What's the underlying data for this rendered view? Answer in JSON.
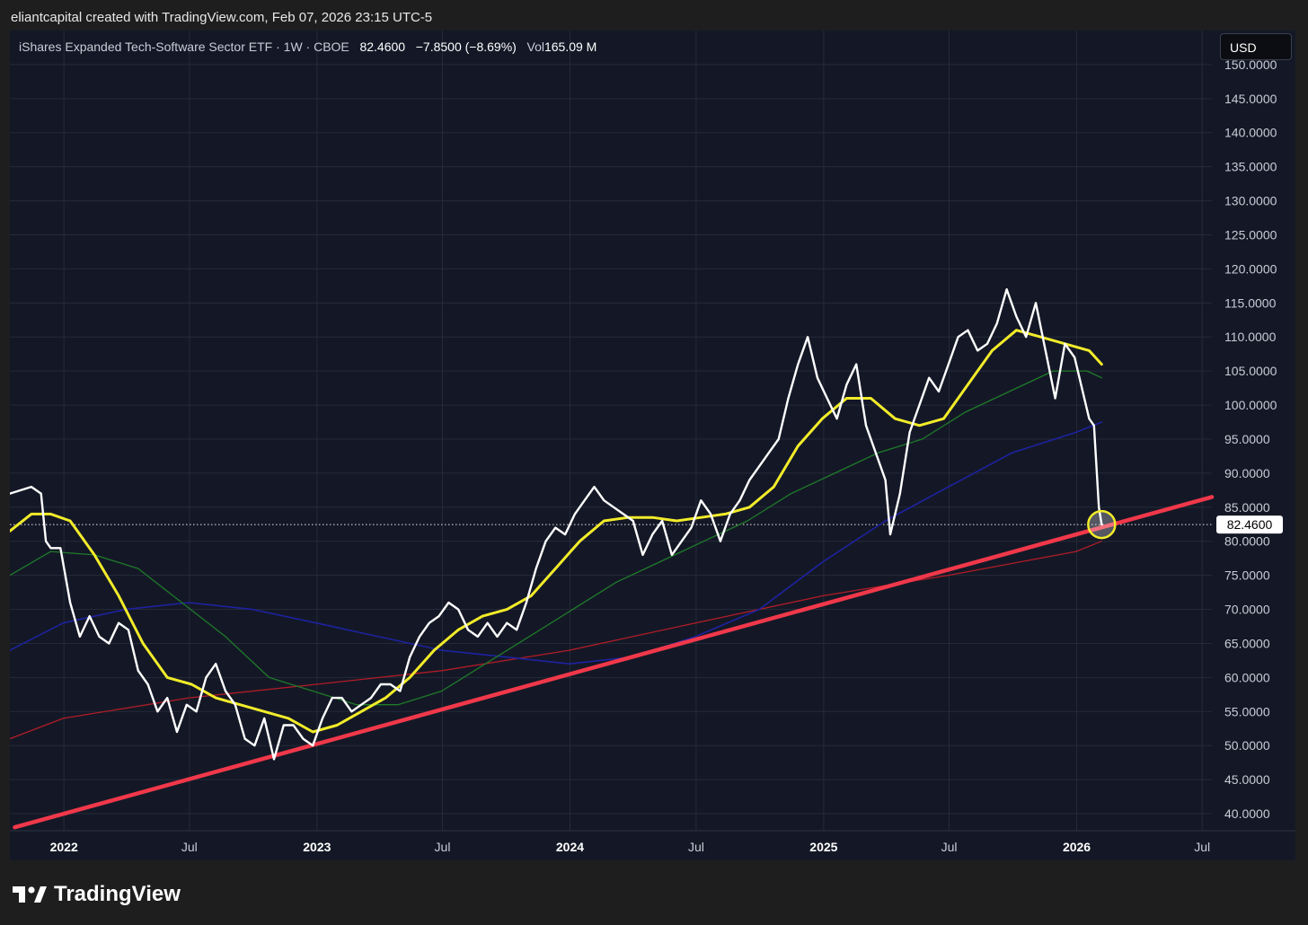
{
  "header": {
    "attribution": "eliantcapital created with TradingView.com, Feb 07, 2026 23:15 UTC-5"
  },
  "legend": {
    "symbol": "iShares Expanded Tech-Software Sector ETF · 1W · CBOE",
    "price": "82.4600",
    "change": "−7.8500 (−8.69%)",
    "vol_label": "Vol",
    "vol_value": "165.09 M"
  },
  "currency": "USD",
  "footer": {
    "brand": "TradingView",
    "logo_icon": "tradingview-logo-icon"
  },
  "colors": {
    "background": "#141826",
    "price_line": "#ffffff",
    "ma_yellow": "#f2ec2a",
    "ma_green": "#1f7a2a",
    "ma_blue": "#1e22a0",
    "ma_red": "#b01c28",
    "trendline": "#f0384a",
    "grid": "#252a39"
  },
  "chart_data": {
    "type": "line",
    "ylim": [
      37.5,
      155
    ],
    "xlim": [
      "2021-10-15",
      "2026-07-15"
    ],
    "y_ticks": [
      "40.0000",
      "45.0000",
      "50.0000",
      "55.0000",
      "60.0000",
      "65.0000",
      "70.0000",
      "75.0000",
      "80.0000",
      "85.0000",
      "90.0000",
      "95.0000",
      "100.0000",
      "105.0000",
      "110.0000",
      "115.0000",
      "120.0000",
      "125.0000",
      "130.0000",
      "135.0000",
      "140.0000",
      "145.0000",
      "150.0000"
    ],
    "x_ticks": [
      {
        "label": "2022",
        "date": "2022-01-01",
        "bold": true
      },
      {
        "label": "Jul",
        "date": "2022-07-01",
        "bold": false
      },
      {
        "label": "2023",
        "date": "2023-01-01",
        "bold": true
      },
      {
        "label": "Jul",
        "date": "2023-07-01",
        "bold": false
      },
      {
        "label": "2024",
        "date": "2024-01-01",
        "bold": true
      },
      {
        "label": "Jul",
        "date": "2024-07-01",
        "bold": false
      },
      {
        "label": "2025",
        "date": "2025-01-01",
        "bold": true
      },
      {
        "label": "Jul",
        "date": "2025-07-01",
        "bold": false
      },
      {
        "label": "2026",
        "date": "2026-01-01",
        "bold": true
      },
      {
        "label": "Jul",
        "date": "2026-07-01",
        "bold": false
      }
    ],
    "current_price_label": "82.4600",
    "current_price": 82.46,
    "grid": true,
    "series": [
      {
        "key": "price",
        "points": [
          [
            "2021-10-15",
            87
          ],
          [
            "2021-11-15",
            88
          ],
          [
            "2021-11-29",
            87
          ],
          [
            "2021-12-06",
            80
          ],
          [
            "2021-12-13",
            79
          ],
          [
            "2021-12-27",
            79
          ],
          [
            "2022-01-10",
            71
          ],
          [
            "2022-01-24",
            66
          ],
          [
            "2022-02-07",
            69
          ],
          [
            "2022-02-21",
            66
          ],
          [
            "2022-03-07",
            65
          ],
          [
            "2022-03-21",
            68
          ],
          [
            "2022-04-04",
            67
          ],
          [
            "2022-04-18",
            61
          ],
          [
            "2022-05-02",
            59
          ],
          [
            "2022-05-16",
            55
          ],
          [
            "2022-05-30",
            57
          ],
          [
            "2022-06-13",
            52
          ],
          [
            "2022-06-27",
            56
          ],
          [
            "2022-07-11",
            55
          ],
          [
            "2022-07-25",
            60
          ],
          [
            "2022-08-08",
            62
          ],
          [
            "2022-08-22",
            58
          ],
          [
            "2022-09-05",
            56
          ],
          [
            "2022-09-19",
            51
          ],
          [
            "2022-10-03",
            50
          ],
          [
            "2022-10-17",
            54
          ],
          [
            "2022-10-31",
            48
          ],
          [
            "2022-11-14",
            53
          ],
          [
            "2022-11-28",
            53
          ],
          [
            "2022-12-12",
            51
          ],
          [
            "2022-12-26",
            50
          ],
          [
            "2023-01-09",
            54
          ],
          [
            "2023-01-23",
            57
          ],
          [
            "2023-02-06",
            57
          ],
          [
            "2023-02-20",
            55
          ],
          [
            "2023-03-06",
            56
          ],
          [
            "2023-03-20",
            57
          ],
          [
            "2023-04-03",
            59
          ],
          [
            "2023-04-17",
            59
          ],
          [
            "2023-05-01",
            58
          ],
          [
            "2023-05-15",
            63
          ],
          [
            "2023-05-29",
            66
          ],
          [
            "2023-06-12",
            68
          ],
          [
            "2023-06-26",
            69
          ],
          [
            "2023-07-10",
            71
          ],
          [
            "2023-07-24",
            70
          ],
          [
            "2023-08-07",
            67
          ],
          [
            "2023-08-21",
            66
          ],
          [
            "2023-09-04",
            68
          ],
          [
            "2023-09-18",
            66
          ],
          [
            "2023-10-02",
            68
          ],
          [
            "2023-10-16",
            67
          ],
          [
            "2023-10-30",
            71
          ],
          [
            "2023-11-13",
            76
          ],
          [
            "2023-11-27",
            80
          ],
          [
            "2023-12-11",
            82
          ],
          [
            "2023-12-25",
            81
          ],
          [
            "2024-01-08",
            84
          ],
          [
            "2024-01-22",
            86
          ],
          [
            "2024-02-05",
            88
          ],
          [
            "2024-02-19",
            86
          ],
          [
            "2024-03-04",
            85
          ],
          [
            "2024-03-18",
            84
          ],
          [
            "2024-04-01",
            83
          ],
          [
            "2024-04-15",
            78
          ],
          [
            "2024-04-29",
            81
          ],
          [
            "2024-05-13",
            83
          ],
          [
            "2024-05-27",
            78
          ],
          [
            "2024-06-10",
            80
          ],
          [
            "2024-06-24",
            82
          ],
          [
            "2024-07-08",
            86
          ],
          [
            "2024-07-22",
            84
          ],
          [
            "2024-08-05",
            80
          ],
          [
            "2024-08-19",
            84
          ],
          [
            "2024-09-02",
            86
          ],
          [
            "2024-09-16",
            89
          ],
          [
            "2024-09-30",
            91
          ],
          [
            "2024-10-14",
            93
          ],
          [
            "2024-10-28",
            95
          ],
          [
            "2024-11-11",
            101
          ],
          [
            "2024-11-25",
            106
          ],
          [
            "2024-12-09",
            110
          ],
          [
            "2024-12-23",
            104
          ],
          [
            "2025-01-06",
            101
          ],
          [
            "2025-01-20",
            98
          ],
          [
            "2025-02-03",
            103
          ],
          [
            "2025-02-17",
            106
          ],
          [
            "2025-03-03",
            97
          ],
          [
            "2025-03-17",
            93
          ],
          [
            "2025-03-31",
            89
          ],
          [
            "2025-04-07",
            81
          ],
          [
            "2025-04-21",
            87
          ],
          [
            "2025-05-05",
            96
          ],
          [
            "2025-05-19",
            100
          ],
          [
            "2025-06-02",
            104
          ],
          [
            "2025-06-16",
            102
          ],
          [
            "2025-06-30",
            106
          ],
          [
            "2025-07-14",
            110
          ],
          [
            "2025-07-28",
            111
          ],
          [
            "2025-08-11",
            108
          ],
          [
            "2025-08-25",
            109
          ],
          [
            "2025-09-08",
            112
          ],
          [
            "2025-09-22",
            117
          ],
          [
            "2025-10-06",
            113
          ],
          [
            "2025-10-20",
            110
          ],
          [
            "2025-11-03",
            115
          ],
          [
            "2025-11-17",
            108
          ],
          [
            "2025-12-01",
            101
          ],
          [
            "2025-12-15",
            109
          ],
          [
            "2025-12-29",
            107
          ],
          [
            "2026-01-12",
            101
          ],
          [
            "2026-01-19",
            98
          ],
          [
            "2026-01-26",
            97
          ],
          [
            "2026-02-02",
            85
          ],
          [
            "2026-02-06",
            82.46
          ]
        ]
      },
      {
        "key": "ma_yellow",
        "points": [
          [
            "2021-10-15",
            81.5
          ],
          [
            "2021-11-15",
            84
          ],
          [
            "2021-12-13",
            84
          ],
          [
            "2022-01-10",
            83
          ],
          [
            "2022-02-14",
            78
          ],
          [
            "2022-03-21",
            72
          ],
          [
            "2022-04-25",
            65
          ],
          [
            "2022-05-30",
            60
          ],
          [
            "2022-07-04",
            59
          ],
          [
            "2022-08-08",
            57
          ],
          [
            "2022-09-12",
            56
          ],
          [
            "2022-10-17",
            55
          ],
          [
            "2022-11-21",
            54
          ],
          [
            "2022-12-26",
            52
          ],
          [
            "2023-01-30",
            53
          ],
          [
            "2023-03-06",
            55
          ],
          [
            "2023-04-10",
            57
          ],
          [
            "2023-05-15",
            60
          ],
          [
            "2023-06-19",
            64
          ],
          [
            "2023-07-24",
            67
          ],
          [
            "2023-08-28",
            69
          ],
          [
            "2023-10-02",
            70
          ],
          [
            "2023-11-06",
            72
          ],
          [
            "2023-12-11",
            76
          ],
          [
            "2024-01-15",
            80
          ],
          [
            "2024-02-19",
            83
          ],
          [
            "2024-03-25",
            83.5
          ],
          [
            "2024-04-29",
            83.5
          ],
          [
            "2024-06-03",
            83
          ],
          [
            "2024-07-08",
            83.5
          ],
          [
            "2024-08-12",
            84
          ],
          [
            "2024-09-16",
            85
          ],
          [
            "2024-10-21",
            88
          ],
          [
            "2024-11-25",
            94
          ],
          [
            "2024-12-30",
            98
          ],
          [
            "2025-02-03",
            101
          ],
          [
            "2025-03-10",
            101
          ],
          [
            "2025-04-14",
            98
          ],
          [
            "2025-05-19",
            97
          ],
          [
            "2025-06-23",
            98
          ],
          [
            "2025-07-28",
            103
          ],
          [
            "2025-09-01",
            108
          ],
          [
            "2025-10-06",
            111
          ],
          [
            "2025-11-10",
            110
          ],
          [
            "2025-12-15",
            109
          ],
          [
            "2026-01-19",
            108
          ],
          [
            "2026-02-06",
            106
          ]
        ]
      },
      {
        "key": "ma_green",
        "points": [
          [
            "2021-10-15",
            75
          ],
          [
            "2021-12-13",
            78.5
          ],
          [
            "2022-02-14",
            78
          ],
          [
            "2022-04-18",
            76
          ],
          [
            "2022-06-20",
            71
          ],
          [
            "2022-08-22",
            66
          ],
          [
            "2022-10-24",
            60
          ],
          [
            "2022-12-26",
            58
          ],
          [
            "2023-02-27",
            56
          ],
          [
            "2023-04-28",
            56
          ],
          [
            "2023-06-30",
            58
          ],
          [
            "2023-09-01",
            62
          ],
          [
            "2023-11-03",
            66
          ],
          [
            "2024-01-05",
            70
          ],
          [
            "2024-03-08",
            74
          ],
          [
            "2024-05-10",
            77
          ],
          [
            "2024-07-12",
            80
          ],
          [
            "2024-09-13",
            83
          ],
          [
            "2024-11-15",
            87
          ],
          [
            "2025-01-17",
            90
          ],
          [
            "2025-03-21",
            93
          ],
          [
            "2025-05-23",
            95
          ],
          [
            "2025-07-25",
            99
          ],
          [
            "2025-09-26",
            102
          ],
          [
            "2025-11-28",
            105
          ],
          [
            "2026-01-16",
            105
          ],
          [
            "2026-02-06",
            104
          ]
        ]
      },
      {
        "key": "ma_blue",
        "points": [
          [
            "2021-10-15",
            64
          ],
          [
            "2021-12-31",
            68
          ],
          [
            "2022-03-31",
            70
          ],
          [
            "2022-06-30",
            71
          ],
          [
            "2022-09-30",
            70
          ],
          [
            "2022-12-31",
            68
          ],
          [
            "2023-03-31",
            66
          ],
          [
            "2023-06-30",
            64
          ],
          [
            "2023-09-30",
            63
          ],
          [
            "2023-12-31",
            62
          ],
          [
            "2024-03-31",
            63
          ],
          [
            "2024-06-30",
            66
          ],
          [
            "2024-09-30",
            70
          ],
          [
            "2024-12-31",
            77
          ],
          [
            "2025-03-31",
            83
          ],
          [
            "2025-06-30",
            88
          ],
          [
            "2025-09-30",
            93
          ],
          [
            "2025-12-31",
            96
          ],
          [
            "2026-02-06",
            97.5
          ]
        ]
      },
      {
        "key": "ma_red",
        "points": [
          [
            "2021-10-15",
            51
          ],
          [
            "2021-12-31",
            54
          ],
          [
            "2022-06-30",
            57
          ],
          [
            "2022-12-31",
            59
          ],
          [
            "2023-06-30",
            61
          ],
          [
            "2023-12-31",
            64
          ],
          [
            "2024-06-30",
            68
          ],
          [
            "2024-12-31",
            72
          ],
          [
            "2025-06-30",
            75
          ],
          [
            "2025-12-31",
            78.5
          ],
          [
            "2026-02-06",
            80
          ]
        ]
      },
      {
        "key": "trendline",
        "points": [
          [
            "2021-10-22",
            38
          ],
          [
            "2026-07-15",
            86.5
          ]
        ]
      }
    ],
    "annotations": [
      {
        "type": "circle",
        "x": "2026-02-06",
        "y": 82.46
      }
    ]
  }
}
